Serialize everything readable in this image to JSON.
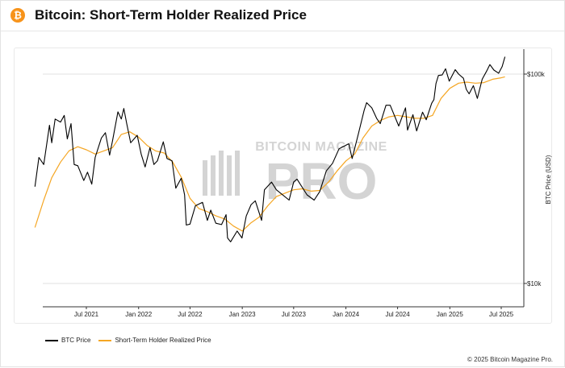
{
  "header": {
    "icon": "bitcoin-icon",
    "icon_glyph": "₿",
    "title": "Bitcoin: Short-Term Holder Realized Price"
  },
  "chart_data": {
    "type": "line",
    "title": "Bitcoin: Short-Term Holder Realized Price",
    "xlabel": "",
    "ylabel": "BTC Price (USD)",
    "yscale": "log",
    "ylim": [
      8000,
      120000
    ],
    "x_range": [
      "2021-01-01",
      "2025-07-31"
    ],
    "x_ticks": [
      {
        "date": "2021-07-01",
        "label": "Jul 2021"
      },
      {
        "date": "2022-01-01",
        "label": "Jan 2022"
      },
      {
        "date": "2022-07-01",
        "label": "Jul 2022"
      },
      {
        "date": "2023-01-01",
        "label": "Jan 2023"
      },
      {
        "date": "2023-07-01",
        "label": "Jul 2023"
      },
      {
        "date": "2024-01-01",
        "label": "Jan 2024"
      },
      {
        "date": "2024-07-01",
        "label": "Jul 2024"
      },
      {
        "date": "2025-01-01",
        "label": "Jan 2025"
      },
      {
        "date": "2025-07-01",
        "label": "Jul 2025"
      }
    ],
    "y_ticks": [
      {
        "value": 100000,
        "label": "$100k"
      },
      {
        "value": 10000,
        "label": "$10k"
      }
    ],
    "grid": "horizontal",
    "legend_position": "bottom-left",
    "watermark": "BITCOIN MAGAZINE PRO",
    "series": [
      {
        "name": "BTC Price",
        "color": "#000000",
        "points": [
          [
            "2021-01-01",
            29000
          ],
          [
            "2021-01-15",
            40000
          ],
          [
            "2021-02-01",
            37000
          ],
          [
            "2021-02-21",
            57000
          ],
          [
            "2021-03-01",
            47000
          ],
          [
            "2021-03-13",
            61000
          ],
          [
            "2021-04-01",
            59000
          ],
          [
            "2021-04-14",
            63500
          ],
          [
            "2021-04-25",
            49000
          ],
          [
            "2021-05-08",
            58000
          ],
          [
            "2021-05-19",
            37000
          ],
          [
            "2021-06-01",
            36500
          ],
          [
            "2021-06-22",
            31000
          ],
          [
            "2021-07-05",
            34000
          ],
          [
            "2021-07-20",
            29800
          ],
          [
            "2021-08-01",
            40000
          ],
          [
            "2021-08-23",
            49500
          ],
          [
            "2021-09-06",
            52500
          ],
          [
            "2021-09-21",
            41000
          ],
          [
            "2021-10-01",
            48000
          ],
          [
            "2021-10-20",
            66000
          ],
          [
            "2021-11-01",
            61000
          ],
          [
            "2021-11-10",
            68500
          ],
          [
            "2021-11-20",
            58000
          ],
          [
            "2021-12-04",
            47000
          ],
          [
            "2021-12-27",
            51000
          ],
          [
            "2022-01-10",
            41500
          ],
          [
            "2022-01-24",
            36000
          ],
          [
            "2022-02-10",
            44500
          ],
          [
            "2022-02-24",
            37000
          ],
          [
            "2022-03-08",
            38500
          ],
          [
            "2022-03-29",
            47500
          ],
          [
            "2022-04-11",
            39500
          ],
          [
            "2022-04-29",
            38500
          ],
          [
            "2022-05-12",
            28500
          ],
          [
            "2022-05-31",
            31800
          ],
          [
            "2022-06-12",
            26500
          ],
          [
            "2022-06-18",
            19000
          ],
          [
            "2022-07-01",
            19200
          ],
          [
            "2022-07-20",
            23500
          ],
          [
            "2022-08-14",
            24400
          ],
          [
            "2022-08-31",
            20000
          ],
          [
            "2022-09-12",
            22400
          ],
          [
            "2022-09-30",
            19400
          ],
          [
            "2022-10-20",
            19100
          ],
          [
            "2022-11-05",
            21300
          ],
          [
            "2022-11-10",
            16500
          ],
          [
            "2022-11-21",
            15800
          ],
          [
            "2022-12-14",
            17800
          ],
          [
            "2022-12-31",
            16500
          ],
          [
            "2023-01-15",
            21000
          ],
          [
            "2023-02-01",
            23800
          ],
          [
            "2023-02-16",
            24800
          ],
          [
            "2023-03-10",
            20000
          ],
          [
            "2023-03-20",
            28000
          ],
          [
            "2023-04-14",
            30500
          ],
          [
            "2023-05-01",
            28000
          ],
          [
            "2023-06-15",
            25000
          ],
          [
            "2023-07-01",
            30500
          ],
          [
            "2023-07-13",
            31500
          ],
          [
            "2023-08-17",
            26500
          ],
          [
            "2023-09-11",
            25000
          ],
          [
            "2023-10-01",
            27500
          ],
          [
            "2023-10-24",
            34500
          ],
          [
            "2023-11-15",
            37500
          ],
          [
            "2023-12-08",
            44000
          ],
          [
            "2024-01-11",
            46500
          ],
          [
            "2024-01-23",
            39500
          ],
          [
            "2024-02-14",
            51800
          ],
          [
            "2024-03-05",
            67000
          ],
          [
            "2024-03-14",
            73000
          ],
          [
            "2024-04-01",
            69000
          ],
          [
            "2024-04-18",
            61500
          ],
          [
            "2024-05-01",
            58000
          ],
          [
            "2024-05-21",
            71000
          ],
          [
            "2024-06-05",
            71000
          ],
          [
            "2024-07-05",
            56500
          ],
          [
            "2024-07-29",
            69000
          ],
          [
            "2024-08-05",
            54000
          ],
          [
            "2024-08-24",
            64000
          ],
          [
            "2024-09-06",
            53500
          ],
          [
            "2024-09-27",
            65800
          ],
          [
            "2024-10-10",
            60500
          ],
          [
            "2024-10-29",
            72500
          ],
          [
            "2024-11-06",
            75500
          ],
          [
            "2024-11-13",
            90000
          ],
          [
            "2024-11-22",
            98500
          ],
          [
            "2024-12-05",
            99000
          ],
          [
            "2024-12-17",
            106000
          ],
          [
            "2024-12-30",
            92500
          ],
          [
            "2025-01-20",
            105000
          ],
          [
            "2025-02-01",
            100000
          ],
          [
            "2025-02-18",
            95500
          ],
          [
            "2025-02-28",
            84500
          ],
          [
            "2025-03-10",
            80500
          ],
          [
            "2025-03-25",
            88000
          ],
          [
            "2025-04-08",
            76500
          ],
          [
            "2025-04-25",
            94500
          ],
          [
            "2025-05-10",
            103000
          ],
          [
            "2025-05-22",
            111000
          ],
          [
            "2025-06-05",
            104500
          ],
          [
            "2025-06-22",
            101000
          ],
          [
            "2025-07-04",
            108500
          ],
          [
            "2025-07-14",
            121000
          ]
        ]
      },
      {
        "name": "Short-Term Holder Realized Price",
        "color": "#f5a623",
        "points": [
          [
            "2021-01-01",
            18500
          ],
          [
            "2021-02-01",
            25000
          ],
          [
            "2021-03-01",
            32000
          ],
          [
            "2021-04-01",
            38000
          ],
          [
            "2021-05-01",
            43000
          ],
          [
            "2021-06-01",
            45000
          ],
          [
            "2021-07-01",
            43500
          ],
          [
            "2021-08-01",
            41500
          ],
          [
            "2021-09-01",
            43000
          ],
          [
            "2021-10-01",
            44500
          ],
          [
            "2021-11-01",
            51500
          ],
          [
            "2021-12-01",
            53000
          ],
          [
            "2022-01-01",
            50000
          ],
          [
            "2022-02-01",
            45500
          ],
          [
            "2022-03-01",
            43000
          ],
          [
            "2022-04-01",
            42000
          ],
          [
            "2022-05-01",
            38000
          ],
          [
            "2022-06-01",
            32000
          ],
          [
            "2022-07-01",
            25500
          ],
          [
            "2022-08-01",
            22800
          ],
          [
            "2022-09-01",
            22000
          ],
          [
            "2022-10-01",
            21000
          ],
          [
            "2022-11-01",
            20300
          ],
          [
            "2022-12-01",
            18800
          ],
          [
            "2023-01-01",
            17800
          ],
          [
            "2023-02-01",
            19500
          ],
          [
            "2023-03-01",
            20700
          ],
          [
            "2023-04-01",
            23500
          ],
          [
            "2023-05-01",
            26000
          ],
          [
            "2023-06-01",
            27000
          ],
          [
            "2023-07-01",
            28000
          ],
          [
            "2023-08-01",
            28300
          ],
          [
            "2023-09-01",
            27600
          ],
          [
            "2023-10-01",
            27800
          ],
          [
            "2023-11-01",
            30500
          ],
          [
            "2023-12-01",
            34500
          ],
          [
            "2024-01-01",
            38500
          ],
          [
            "2024-02-01",
            41500
          ],
          [
            "2024-03-01",
            49500
          ],
          [
            "2024-04-01",
            56500
          ],
          [
            "2024-05-01",
            60000
          ],
          [
            "2024-06-01",
            62500
          ],
          [
            "2024-07-01",
            63500
          ],
          [
            "2024-08-01",
            62500
          ],
          [
            "2024-09-01",
            61500
          ],
          [
            "2024-10-01",
            61500
          ],
          [
            "2024-11-01",
            63500
          ],
          [
            "2024-12-01",
            76500
          ],
          [
            "2025-01-01",
            85500
          ],
          [
            "2025-02-01",
            90500
          ],
          [
            "2025-03-01",
            91500
          ],
          [
            "2025-04-01",
            90500
          ],
          [
            "2025-05-01",
            91000
          ],
          [
            "2025-06-01",
            94500
          ],
          [
            "2025-07-01",
            96000
          ],
          [
            "2025-07-14",
            97000
          ]
        ]
      }
    ]
  },
  "legend": {
    "items": [
      {
        "label": "BTC Price",
        "color": "#000000"
      },
      {
        "label": "Short-Term Holder Realized Price",
        "color": "#f5a623"
      }
    ]
  },
  "footer": {
    "copyright": "© 2025 Bitcoin Magazine Pro."
  }
}
